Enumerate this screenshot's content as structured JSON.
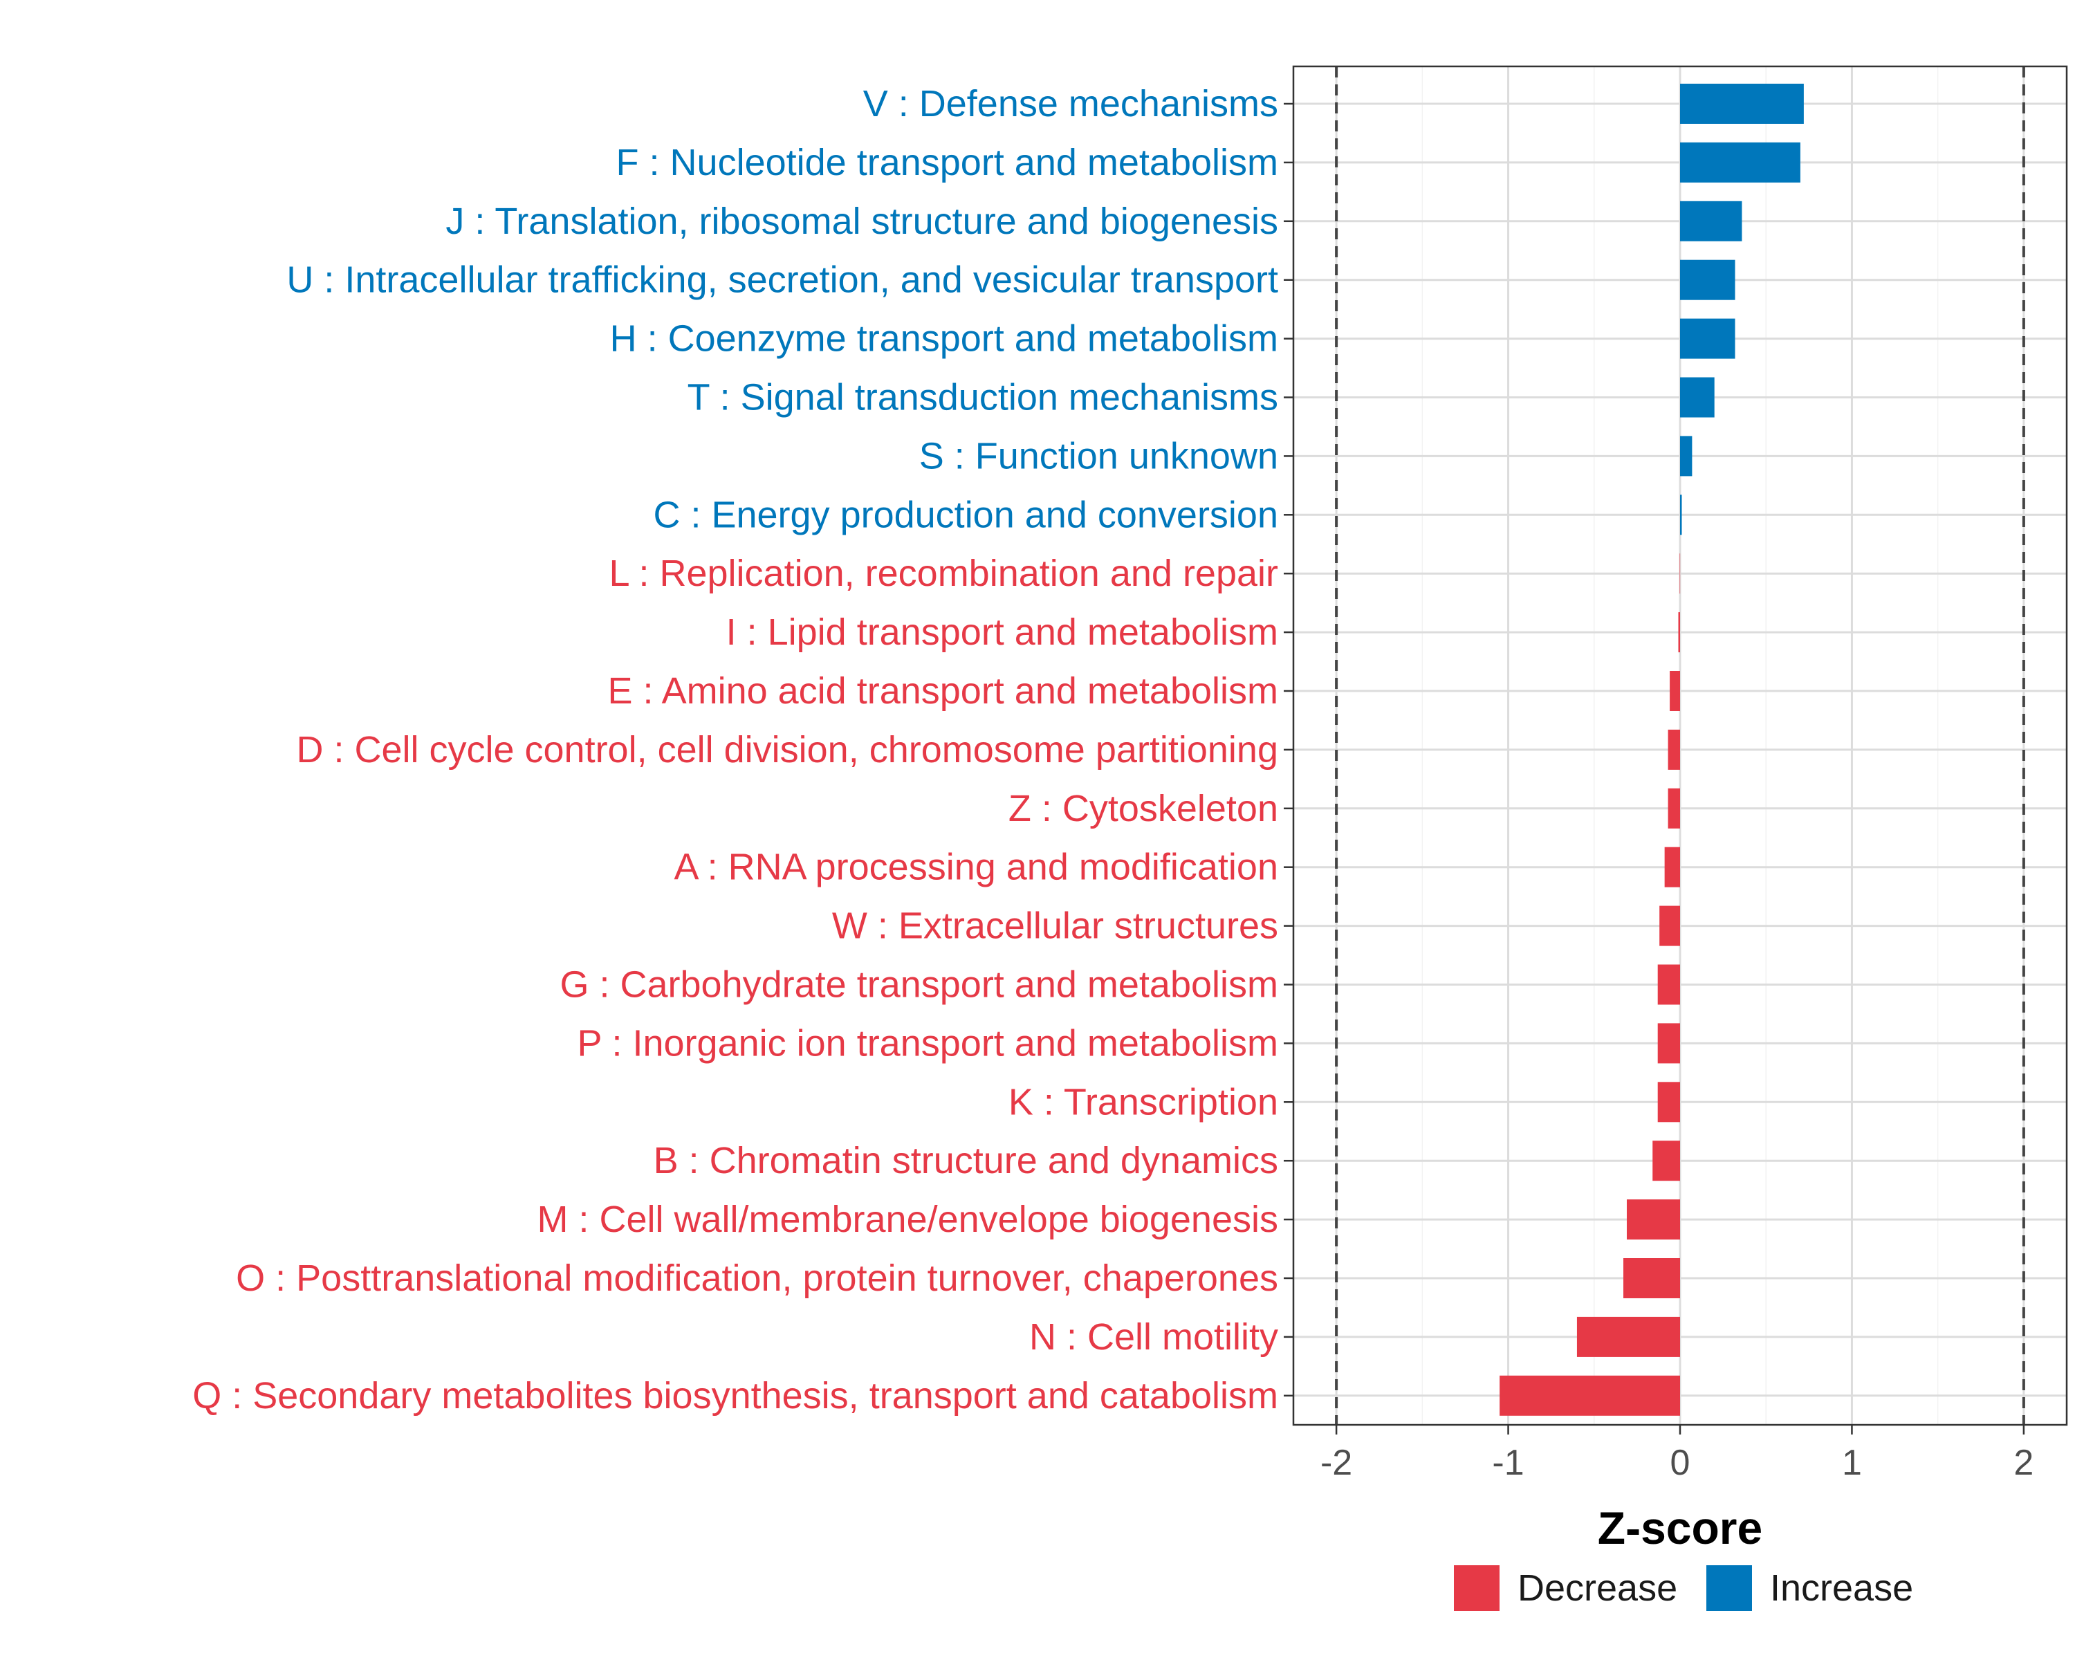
{
  "chart_data": {
    "type": "bar",
    "orientation": "horizontal",
    "xlabel": "Z-score",
    "xlim": [
      -2.25,
      2.25
    ],
    "xticks": [
      -2,
      -1,
      0,
      1,
      2
    ],
    "xtick_labels": [
      "-2",
      "-1",
      "0",
      "1",
      "2"
    ],
    "threshold_lines": [
      -2,
      2
    ],
    "grid": true,
    "legend": {
      "position": "bottom",
      "entries": [
        {
          "label": "Decrease",
          "color": "#E63946"
        },
        {
          "label": "Increase",
          "color": "#0077BB"
        }
      ]
    },
    "categories": [
      {
        "label": "V : Defense mechanisms",
        "value": 0.72,
        "direction": "Increase"
      },
      {
        "label": "F : Nucleotide transport and metabolism",
        "value": 0.7,
        "direction": "Increase"
      },
      {
        "label": "J : Translation, ribosomal structure and biogenesis",
        "value": 0.36,
        "direction": "Increase"
      },
      {
        "label": "U : Intracellular trafficking, secretion, and vesicular transport",
        "value": 0.32,
        "direction": "Increase"
      },
      {
        "label": "H : Coenzyme transport and metabolism",
        "value": 0.32,
        "direction": "Increase"
      },
      {
        "label": "T : Signal transduction mechanisms",
        "value": 0.2,
        "direction": "Increase"
      },
      {
        "label": "S : Function unknown",
        "value": 0.07,
        "direction": "Increase"
      },
      {
        "label": "C : Energy production and conversion",
        "value": 0.01,
        "direction": "Increase"
      },
      {
        "label": "L : Replication, recombination and repair",
        "value": -0.002,
        "direction": "Decrease"
      },
      {
        "label": "I : Lipid transport and metabolism",
        "value": -0.01,
        "direction": "Decrease"
      },
      {
        "label": "E : Amino acid transport and metabolism",
        "value": -0.06,
        "direction": "Decrease"
      },
      {
        "label": "D : Cell cycle control, cell division, chromosome partitioning",
        "value": -0.07,
        "direction": "Decrease"
      },
      {
        "label": "Z : Cytoskeleton",
        "value": -0.07,
        "direction": "Decrease"
      },
      {
        "label": "A : RNA processing and modification",
        "value": -0.09,
        "direction": "Decrease"
      },
      {
        "label": "W : Extracellular structures",
        "value": -0.12,
        "direction": "Decrease"
      },
      {
        "label": "G : Carbohydrate transport and metabolism",
        "value": -0.13,
        "direction": "Decrease"
      },
      {
        "label": "P : Inorganic ion transport and metabolism",
        "value": -0.13,
        "direction": "Decrease"
      },
      {
        "label": "K : Transcription",
        "value": -0.13,
        "direction": "Decrease"
      },
      {
        "label": "B : Chromatin structure and dynamics",
        "value": -0.16,
        "direction": "Decrease"
      },
      {
        "label": "M : Cell wall/membrane/envelope biogenesis",
        "value": -0.31,
        "direction": "Decrease"
      },
      {
        "label": "O : Posttranslational modification, protein turnover, chaperones",
        "value": -0.33,
        "direction": "Decrease"
      },
      {
        "label": "N : Cell motility",
        "value": -0.6,
        "direction": "Decrease"
      },
      {
        "label": "Q : Secondary metabolites biosynthesis, transport and catabolism",
        "value": -1.05,
        "direction": "Decrease"
      }
    ]
  }
}
